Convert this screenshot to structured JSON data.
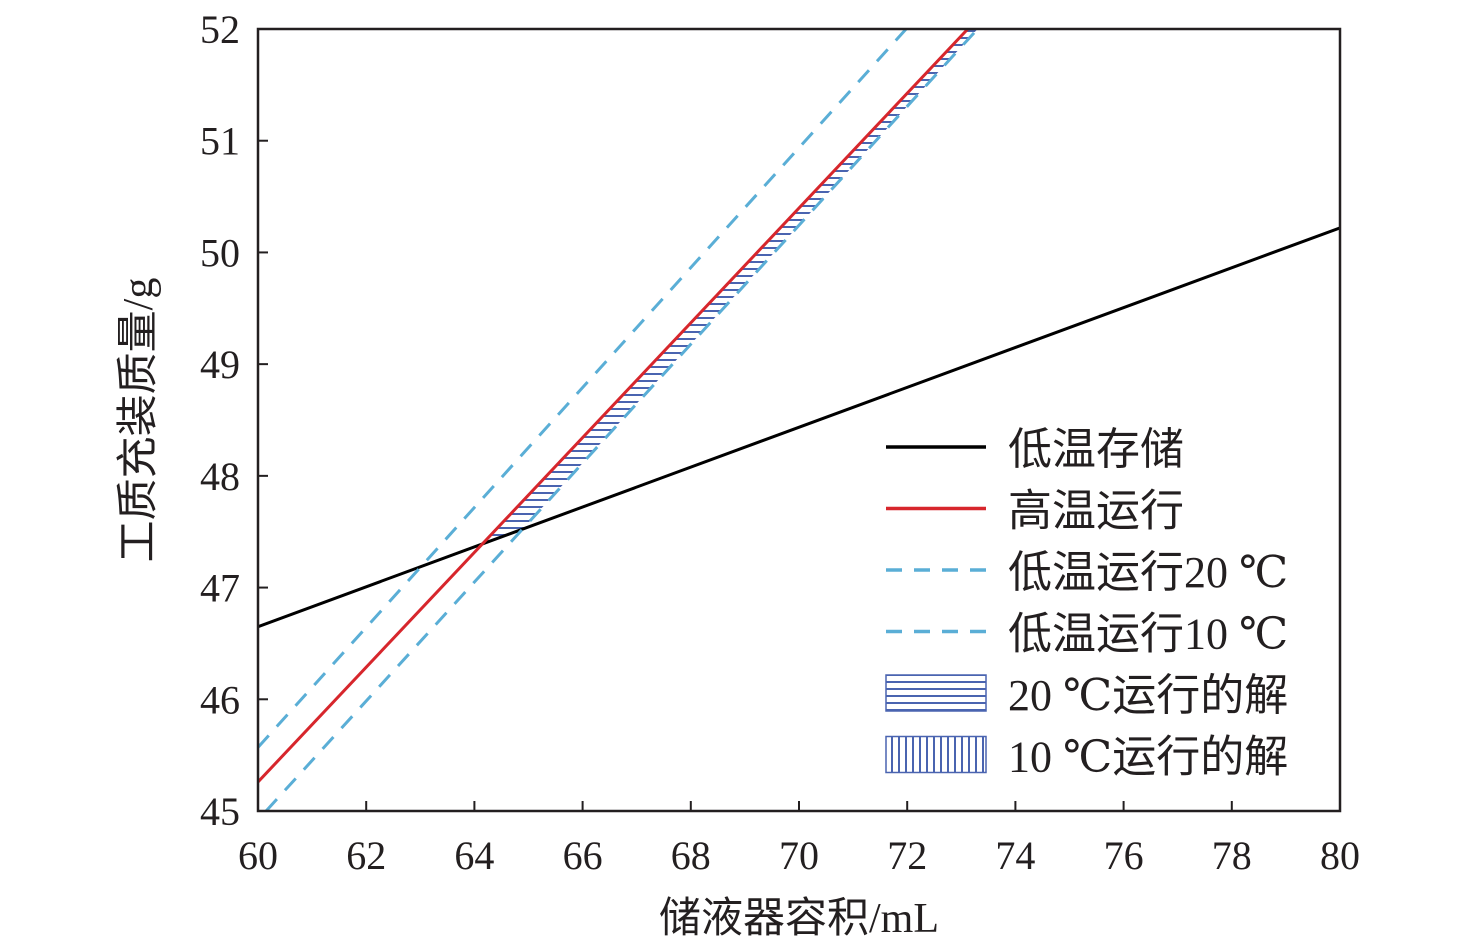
{
  "chart_data": {
    "type": "line",
    "xlabel": "储液器容积/mL",
    "ylabel": "工质充装质量/g",
    "xlim": [
      60,
      80
    ],
    "ylim": [
      45,
      52
    ],
    "xticks": [
      60,
      62,
      64,
      66,
      68,
      70,
      72,
      74,
      76,
      78,
      80
    ],
    "yticks": [
      45,
      46,
      47,
      48,
      49,
      50,
      51,
      52
    ],
    "grid": false,
    "legend_position": "right",
    "series": [
      {
        "name": "低温存储",
        "color": "#000000",
        "style": "solid",
        "x": [
          60,
          80
        ],
        "y": [
          46.65,
          50.22
        ]
      },
      {
        "name": "高温运行",
        "color": "#d7262c",
        "style": "solid",
        "x": [
          60,
          73.12
        ],
        "y": [
          45.26,
          52
        ]
      },
      {
        "name": "低温运行20 ℃",
        "color": "#5aaed6",
        "style": "dashed",
        "x": [
          60,
          71.98
        ],
        "y": [
          45.57,
          52
        ]
      },
      {
        "name": "低温运行10 ℃",
        "color": "#5aaed6",
        "style": "dashed",
        "x": [
          60.15,
          73.3
        ],
        "y": [
          45,
          52
        ]
      }
    ],
    "regions": [
      {
        "name": "20 ℃运行的解",
        "hatch": "horizontal",
        "color": "#4a64b0"
      },
      {
        "name": "10 ℃运行的解",
        "hatch": "vertical",
        "color": "#4a64b0"
      }
    ]
  }
}
